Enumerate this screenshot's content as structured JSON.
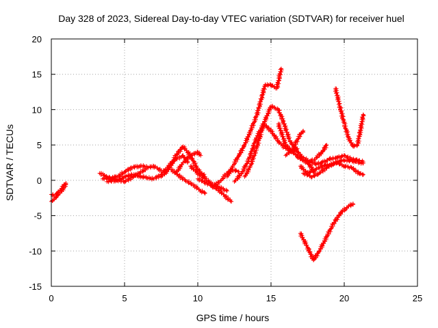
{
  "chart_data": {
    "type": "scatter",
    "title": "Day 328 of 2023, Sidereal Day-to-day VTEC variation (SDTVAR) for receiver huel",
    "xlabel": "GPS time / hours",
    "ylabel": "SDTVAR / TECUs",
    "xlim": [
      0,
      25
    ],
    "ylim": [
      -15,
      20
    ],
    "xticks": [
      "0",
      "5",
      "10",
      "15",
      "20",
      "25"
    ],
    "yticks": [
      "-15",
      "-10",
      "-5",
      "0",
      "5",
      "10",
      "15",
      "20"
    ],
    "grid": true,
    "marker": "plus",
    "series_color": "#ff0000",
    "series": [
      {
        "name": "s1",
        "x": [
          0.0,
          0.2,
          0.4,
          0.6,
          0.8,
          1.0
        ],
        "y": [
          -3.0,
          -2.7,
          -2.2,
          -1.8,
          -1.2,
          -0.6
        ]
      },
      {
        "name": "s2",
        "x": [
          0.0,
          0.2,
          0.4,
          0.6,
          0.8,
          1.0
        ],
        "y": [
          -2.0,
          -2.2,
          -1.8,
          -1.4,
          -0.9,
          -0.4
        ]
      },
      {
        "name": "s3",
        "x": [
          3.3,
          4.0,
          5.0,
          5.6,
          6.0,
          6.6,
          7.0,
          7.5
        ],
        "y": [
          1.0,
          0.3,
          -0.2,
          0.5,
          1.0,
          1.8,
          2.0,
          1.4
        ]
      },
      {
        "name": "s4",
        "x": [
          3.5,
          4.5,
          5.0,
          5.5,
          6.0,
          6.5
        ],
        "y": [
          0.2,
          0.5,
          1.2,
          1.8,
          2.0,
          2.0
        ]
      },
      {
        "name": "s5",
        "x": [
          3.8,
          4.5,
          5.0,
          5.5,
          6.2,
          7.0,
          7.5,
          8.0,
          8.5,
          9.0,
          9.3
        ],
        "y": [
          -0.2,
          0.0,
          0.5,
          0.8,
          0.5,
          0.2,
          0.8,
          2.0,
          3.0,
          3.5,
          2.5
        ]
      },
      {
        "name": "s6",
        "x": [
          7.5,
          8.0,
          8.5,
          9.0,
          9.5,
          10.0,
          10.5
        ],
        "y": [
          0.5,
          1.5,
          3.5,
          4.8,
          3.5,
          1.5,
          0.5
        ]
      },
      {
        "name": "s7",
        "x": [
          8.5,
          9.0,
          9.5,
          10.0,
          10.2
        ],
        "y": [
          1.0,
          2.5,
          3.5,
          4.0,
          3.5
        ]
      },
      {
        "name": "s8",
        "x": [
          8.2,
          8.8,
          9.3,
          9.8,
          10.2,
          10.5
        ],
        "y": [
          1.5,
          0.5,
          -0.2,
          -0.8,
          -1.5,
          -1.8
        ]
      },
      {
        "name": "s9",
        "x": [
          9.5,
          10.0,
          10.5,
          11.0,
          11.5,
          12.0
        ],
        "y": [
          2.0,
          1.0,
          0.2,
          -0.5,
          -1.0,
          -1.5
        ]
      },
      {
        "name": "s10",
        "x": [
          10.0,
          10.5,
          11.0,
          11.5,
          12.0,
          12.3
        ],
        "y": [
          0.2,
          -0.3,
          -0.8,
          -1.5,
          -2.5,
          -3.0
        ]
      },
      {
        "name": "s11",
        "x": [
          11.0,
          11.6,
          12.0,
          12.4,
          12.8
        ],
        "y": [
          -1.0,
          0.0,
          1.0,
          1.5,
          1.2
        ]
      },
      {
        "name": "s12",
        "x": [
          12.0,
          12.4,
          12.8,
          13.2,
          13.6,
          14.0,
          14.4,
          14.6,
          15.0,
          15.4,
          15.7
        ],
        "y": [
          0.5,
          2.0,
          3.5,
          5.0,
          7.0,
          9.0,
          12.0,
          13.5,
          13.5,
          13.0,
          15.8
        ]
      },
      {
        "name": "s13",
        "x": [
          13.2,
          13.6,
          14.0,
          14.5,
          15.0,
          15.5,
          15.8,
          16.3,
          17.0,
          17.5,
          18.0,
          18.5,
          19.0,
          19.5,
          20.0,
          20.5,
          21.0,
          21.3
        ],
        "y": [
          0.5,
          2.0,
          4.5,
          8.0,
          10.5,
          10.0,
          8.5,
          5.5,
          3.5,
          2.8,
          2.3,
          2.5,
          3.0,
          3.2,
          3.5,
          3.0,
          2.8,
          2.6
        ]
      },
      {
        "name": "s14",
        "x": [
          12.5,
          13.0,
          13.5,
          14.0,
          14.5,
          15.0,
          15.5,
          16.0,
          16.5,
          17.0,
          17.5,
          18.0
        ],
        "y": [
          -0.2,
          1.0,
          3.0,
          6.0,
          8.0,
          7.0,
          5.5,
          4.5,
          4.0,
          3.0,
          2.5,
          1.0
        ]
      },
      {
        "name": "s15",
        "x": [
          15.5,
          16.0,
          16.5,
          16.8
        ],
        "y": [
          8.0,
          5.0,
          4.0,
          4.5
        ]
      },
      {
        "name": "s16",
        "x": [
          16.0,
          16.5,
          17.0,
          17.2
        ],
        "y": [
          3.5,
          4.5,
          6.5,
          7.0
        ]
      },
      {
        "name": "s17",
        "x": [
          17.0,
          17.5,
          18.0,
          18.5,
          19.0,
          19.5,
          20.0,
          20.5,
          21.0,
          21.3
        ],
        "y": [
          2.0,
          1.0,
          1.5,
          2.0,
          2.2,
          2.5,
          2.0,
          1.8,
          1.0,
          0.8
        ]
      },
      {
        "name": "s18",
        "x": [
          17.2,
          17.8,
          18.3,
          18.8,
          19.3,
          19.8,
          20.3,
          20.8,
          21.3
        ],
        "y": [
          1.0,
          0.5,
          1.0,
          1.8,
          2.4,
          2.8,
          2.8,
          2.6,
          2.4
        ]
      },
      {
        "name": "s19",
        "x": [
          17.5,
          18.0,
          18.5,
          18.8
        ],
        "y": [
          2.5,
          3.0,
          4.0,
          5.0
        ]
      },
      {
        "name": "s20",
        "x": [
          19.4,
          19.7,
          20.0,
          20.3,
          20.6,
          20.9,
          21.1,
          21.3
        ],
        "y": [
          13.0,
          10.5,
          8.0,
          6.0,
          4.8,
          5.0,
          7.0,
          9.3
        ]
      },
      {
        "name": "s21",
        "x": [
          17.0,
          17.5,
          17.9,
          18.3,
          18.8,
          19.3,
          19.8,
          20.3,
          20.6
        ],
        "y": [
          -7.5,
          -9.5,
          -11.3,
          -10.0,
          -8.0,
          -6.0,
          -4.5,
          -3.7,
          -3.3
        ]
      }
    ]
  }
}
